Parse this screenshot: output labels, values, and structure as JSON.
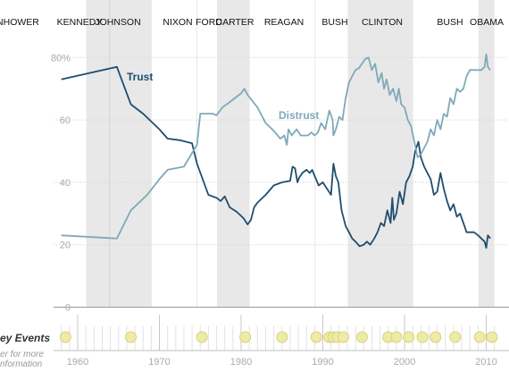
{
  "chart_data": {
    "type": "line",
    "presidencies": [
      {
        "name": "EISENHOWER",
        "start": 1953,
        "end": 1961.05,
        "shaded": false
      },
      {
        "name": "KENNEDY",
        "start": 1961.05,
        "end": 1963.9,
        "shaded": true
      },
      {
        "name": "JOHNSON",
        "start": 1963.9,
        "end": 1969.05,
        "shaded": true
      },
      {
        "name": "NIXON",
        "start": 1969.05,
        "end": 1974.6,
        "shaded": false
      },
      {
        "name": "FORD",
        "start": 1974.6,
        "end": 1977.05,
        "shaded": false
      },
      {
        "name": "CARTER",
        "start": 1977.05,
        "end": 1981.05,
        "shaded": true
      },
      {
        "name": "REAGAN",
        "start": 1981.05,
        "end": 1989.05,
        "shaded": false
      },
      {
        "name": "BUSH",
        "start": 1989.05,
        "end": 1993.05,
        "shaded": false
      },
      {
        "name": "CLINTON",
        "start": 1993.05,
        "end": 2001.05,
        "shaded": true
      },
      {
        "name": "BUSH",
        "start": 2001.05,
        "end": 2009.05,
        "shaded": false
      },
      {
        "name": "OBAMA",
        "start": 2009.05,
        "end": 2011,
        "shaded": true
      }
    ],
    "x_ticks": [
      "1960",
      "1970",
      "1980",
      "1990",
      "2000",
      "2010"
    ],
    "y_ticks": [
      "0",
      "20",
      "40",
      "60",
      "80%"
    ],
    "ylim": [
      0,
      80
    ],
    "series": [
      {
        "name": "Trust",
        "color": "#1f4e6e",
        "points": [
          [
            1958,
            73
          ],
          [
            1964.8,
            77
          ],
          [
            1966.5,
            65
          ],
          [
            1968,
            62
          ],
          [
            1970,
            57
          ],
          [
            1971,
            54
          ],
          [
            1972.5,
            53.5
          ],
          [
            1974,
            52.5
          ],
          [
            1974.6,
            46
          ],
          [
            1976,
            36
          ],
          [
            1977,
            35
          ],
          [
            1977.5,
            34
          ],
          [
            1978,
            35.5
          ],
          [
            1978.6,
            32
          ],
          [
            1979.5,
            30.5
          ],
          [
            1980.3,
            28.5
          ],
          [
            1980.8,
            26.5
          ],
          [
            1981.2,
            28
          ],
          [
            1981.6,
            32
          ],
          [
            1982,
            33.5
          ],
          [
            1983,
            36
          ],
          [
            1984,
            39
          ],
          [
            1985,
            40
          ],
          [
            1986,
            40.5
          ],
          [
            1986.3,
            45
          ],
          [
            1986.6,
            44.5
          ],
          [
            1986.9,
            40
          ],
          [
            1987.1,
            41.5
          ],
          [
            1987.5,
            43
          ],
          [
            1988,
            44
          ],
          [
            1988.4,
            43
          ],
          [
            1988.7,
            44
          ],
          [
            1989,
            42
          ],
          [
            1989.5,
            39
          ],
          [
            1990,
            40
          ],
          [
            1990.5,
            38
          ],
          [
            1991,
            36
          ],
          [
            1991.3,
            46
          ],
          [
            1991.6,
            42
          ],
          [
            1991.9,
            40
          ],
          [
            1992.3,
            31
          ],
          [
            1992.8,
            26
          ],
          [
            1993.2,
            24
          ],
          [
            1993.6,
            22
          ],
          [
            1994,
            21
          ],
          [
            1994.5,
            19.5
          ],
          [
            1995,
            20
          ],
          [
            1995.4,
            21
          ],
          [
            1995.8,
            20
          ],
          [
            1996.3,
            22
          ],
          [
            1996.7,
            24
          ],
          [
            1997.1,
            27
          ],
          [
            1997.5,
            26
          ],
          [
            1997.9,
            31
          ],
          [
            1998.3,
            27
          ],
          [
            1998.5,
            35
          ],
          [
            1998.7,
            28
          ],
          [
            1999,
            30
          ],
          [
            1999.4,
            37
          ],
          [
            1999.8,
            33
          ],
          [
            2000.2,
            40
          ],
          [
            2000.6,
            42
          ],
          [
            2001,
            45
          ],
          [
            2001.3,
            50
          ],
          [
            2001.7,
            53
          ],
          [
            2002,
            48
          ],
          [
            2002.4,
            45
          ],
          [
            2002.8,
            43
          ],
          [
            2003.2,
            41
          ],
          [
            2003.6,
            36
          ],
          [
            2004,
            37
          ],
          [
            2004.4,
            43
          ],
          [
            2004.8,
            38
          ],
          [
            2005.2,
            34
          ],
          [
            2005.6,
            31
          ],
          [
            2006,
            33
          ],
          [
            2006.4,
            29
          ],
          [
            2006.8,
            30
          ],
          [
            2007.2,
            27
          ],
          [
            2007.6,
            24
          ],
          [
            2008,
            24
          ],
          [
            2008.5,
            24
          ],
          [
            2009,
            23
          ],
          [
            2009.4,
            22
          ],
          [
            2009.8,
            21
          ],
          [
            2010,
            19
          ],
          [
            2010.2,
            23
          ],
          [
            2010.5,
            22
          ]
        ]
      },
      {
        "name": "Distrust",
        "color": "#7fa9b9",
        "points": [
          [
            1958,
            23
          ],
          [
            1964.8,
            22
          ],
          [
            1966.5,
            31
          ],
          [
            1968.5,
            36
          ],
          [
            1970,
            41
          ],
          [
            1971,
            44
          ],
          [
            1973,
            45
          ],
          [
            1974.6,
            52
          ],
          [
            1975,
            62
          ],
          [
            1976.5,
            62
          ],
          [
            1977,
            61.5
          ],
          [
            1977.7,
            64
          ],
          [
            1978.5,
            65.5
          ],
          [
            1979.5,
            67.5
          ],
          [
            1980,
            68.5
          ],
          [
            1980.4,
            70
          ],
          [
            1980.8,
            68
          ],
          [
            1981.4,
            66
          ],
          [
            1982,
            64
          ],
          [
            1983,
            59
          ],
          [
            1984,
            56.5
          ],
          [
            1984.8,
            54
          ],
          [
            1985.3,
            55
          ],
          [
            1985.6,
            52
          ],
          [
            1985.8,
            57
          ],
          [
            1986.2,
            55
          ],
          [
            1986.8,
            57
          ],
          [
            1987.3,
            55
          ],
          [
            1987.8,
            55
          ],
          [
            1988.2,
            55
          ],
          [
            1988.6,
            56
          ],
          [
            1989,
            55
          ],
          [
            1989.4,
            56
          ],
          [
            1989.8,
            59
          ],
          [
            1990.3,
            57
          ],
          [
            1990.8,
            63
          ],
          [
            1991.2,
            60
          ],
          [
            1991.3,
            55
          ],
          [
            1991.6,
            57
          ],
          [
            1992,
            61
          ],
          [
            1992.4,
            60
          ],
          [
            1992.8,
            67
          ],
          [
            1993.2,
            72
          ],
          [
            1993.6,
            74
          ],
          [
            1994,
            76
          ],
          [
            1994.4,
            76.5
          ],
          [
            1994.8,
            78
          ],
          [
            1995.2,
            79.5
          ],
          [
            1995.6,
            80
          ],
          [
            1996,
            76
          ],
          [
            1996.4,
            78
          ],
          [
            1996.8,
            72
          ],
          [
            1997.2,
            75
          ],
          [
            1997.5,
            70
          ],
          [
            1997.8,
            73
          ],
          [
            1998.2,
            68
          ],
          [
            1998.6,
            70
          ],
          [
            1999,
            66
          ],
          [
            1999.3,
            70
          ],
          [
            1999.6,
            65
          ],
          [
            2000,
            64
          ],
          [
            2000.4,
            60
          ],
          [
            2000.8,
            58
          ],
          [
            2001.2,
            53
          ],
          [
            2001.6,
            48
          ],
          [
            2002,
            49
          ],
          [
            2002.4,
            51
          ],
          [
            2002.8,
            53
          ],
          [
            2003.2,
            57
          ],
          [
            2003.6,
            55
          ],
          [
            2004,
            60
          ],
          [
            2004.4,
            57
          ],
          [
            2004.8,
            62
          ],
          [
            2005.2,
            61
          ],
          [
            2005.6,
            67
          ],
          [
            2006,
            65
          ],
          [
            2006.4,
            70
          ],
          [
            2006.8,
            69
          ],
          [
            2007.2,
            70
          ],
          [
            2007.6,
            74
          ],
          [
            2008,
            76
          ],
          [
            2008.5,
            76
          ],
          [
            2009,
            76
          ],
          [
            2009.4,
            76
          ],
          [
            2009.8,
            77
          ],
          [
            2010,
            81
          ],
          [
            2010.2,
            77
          ],
          [
            2010.5,
            76
          ]
        ]
      }
    ],
    "key_events_label": "ey Events",
    "key_events_hint": [
      "er for more",
      "nformation"
    ],
    "event_years": [
      1958.5,
      1966.5,
      1975.2,
      1980.5,
      1985,
      1989.2,
      1990.8,
      1991.3,
      1991.8,
      1992.5,
      1994.8,
      1998,
      1999,
      2000.5,
      2002.2,
      2003.8,
      2006.2,
      2009.2,
      2010.7
    ]
  }
}
